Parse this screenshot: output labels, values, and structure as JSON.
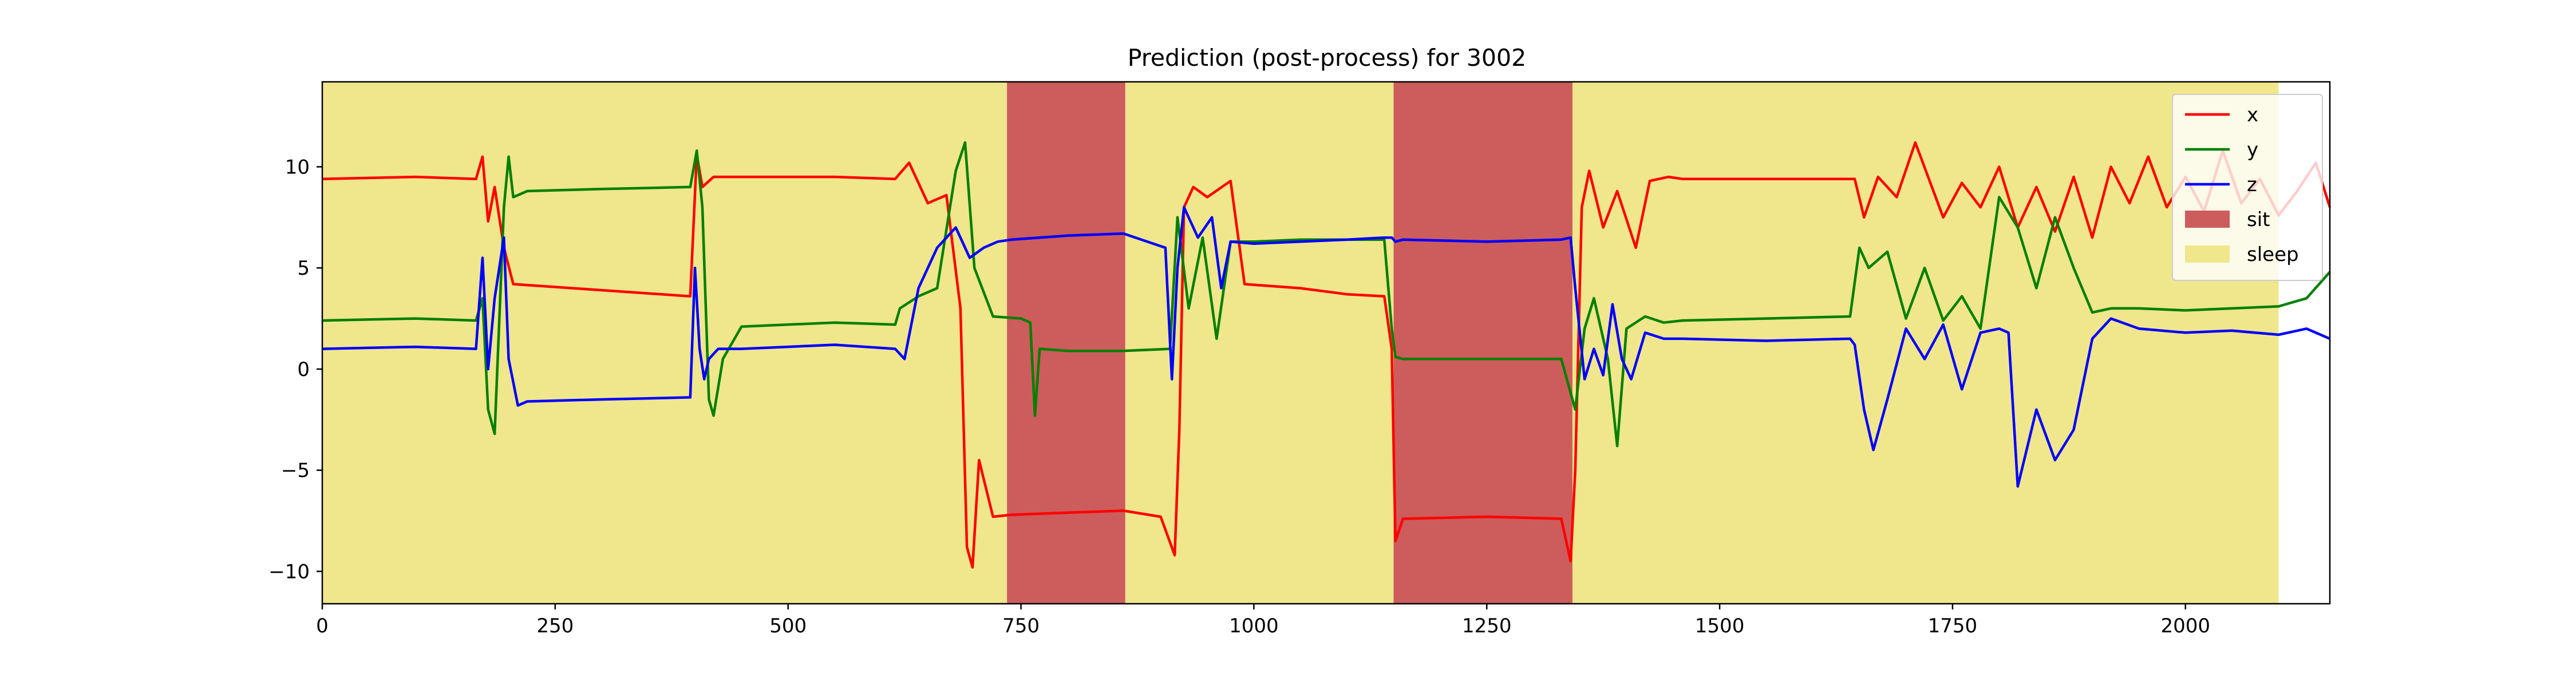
{
  "chart_data": {
    "type": "line",
    "title": "Prediction (post-process) for 3002",
    "xlabel": "",
    "ylabel": "",
    "xlim": [
      0,
      2155
    ],
    "ylim": [
      -11.6,
      14.2
    ],
    "xticks": [
      0,
      250,
      500,
      750,
      1000,
      1250,
      1500,
      1750,
      2000
    ],
    "yticks": [
      -10,
      -5,
      0,
      5,
      10
    ],
    "grid": false,
    "legend_position": "top-right",
    "regions": [
      {
        "label": "sleep",
        "x_start": 0,
        "x_end": 735
      },
      {
        "label": "sit",
        "x_start": 735,
        "x_end": 862
      },
      {
        "label": "sleep",
        "x_start": 862,
        "x_end": 1150
      },
      {
        "label": "sit",
        "x_start": 1150,
        "x_end": 1342
      },
      {
        "label": "sleep",
        "x_start": 1342,
        "x_end": 2100
      }
    ],
    "region_colors": {
      "sit": "#cd5c5c",
      "sleep": "#f0e68c"
    },
    "series": [
      {
        "name": "x",
        "color": "#ff0000",
        "x": [
          0,
          100,
          165,
          172,
          178,
          185,
          195,
          205,
          300,
          395,
          402,
          408,
          420,
          450,
          550,
          615,
          630,
          650,
          670,
          685,
          692,
          698,
          705,
          720,
          740,
          800,
          860,
          900,
          915,
          920,
          925,
          935,
          950,
          975,
          990,
          1050,
          1100,
          1140,
          1148,
          1152,
          1160,
          1250,
          1330,
          1340,
          1345,
          1352,
          1360,
          1375,
          1390,
          1410,
          1425,
          1445,
          1460,
          1550,
          1645,
          1655,
          1670,
          1690,
          1710,
          1740,
          1760,
          1780,
          1800,
          1820,
          1840,
          1860,
          1880,
          1900,
          1920,
          1940,
          1960,
          1980,
          2000,
          2020,
          2040,
          2060,
          2080,
          2100,
          2120,
          2140,
          2155
        ],
        "y": [
          9.4,
          9.5,
          9.4,
          10.5,
          7.3,
          9.0,
          6.0,
          4.2,
          3.9,
          3.6,
          10.6,
          9.0,
          9.5,
          9.5,
          9.5,
          9.4,
          10.2,
          8.2,
          8.6,
          3.0,
          -8.8,
          -9.8,
          -4.5,
          -7.3,
          -7.2,
          -7.1,
          -7.0,
          -7.3,
          -9.2,
          -3.0,
          8.0,
          9.0,
          8.5,
          9.3,
          4.2,
          4.0,
          3.7,
          3.6,
          1.0,
          -8.5,
          -7.4,
          -7.3,
          -7.4,
          -9.5,
          -5.0,
          8.0,
          9.8,
          7.0,
          8.8,
          6.0,
          9.3,
          9.5,
          9.4,
          9.4,
          9.4,
          7.5,
          9.5,
          8.5,
          11.2,
          7.5,
          9.2,
          8.0,
          10.0,
          7.0,
          9.0,
          6.8,
          9.5,
          6.5,
          10.0,
          8.2,
          10.5,
          8.0,
          9.5,
          7.8,
          10.8,
          8.2,
          9.4,
          7.6,
          8.8,
          10.2,
          8.0
        ]
      },
      {
        "name": "y",
        "color": "#008000",
        "x": [
          0,
          100,
          165,
          172,
          178,
          185,
          195,
          200,
          205,
          220,
          300,
          395,
          402,
          408,
          415,
          420,
          430,
          450,
          550,
          615,
          620,
          640,
          660,
          680,
          690,
          700,
          720,
          750,
          760,
          765,
          770,
          800,
          860,
          910,
          918,
          930,
          945,
          960,
          975,
          1000,
          1050,
          1100,
          1140,
          1148,
          1152,
          1160,
          1250,
          1330,
          1345,
          1355,
          1365,
          1380,
          1390,
          1400,
          1420,
          1440,
          1460,
          1550,
          1640,
          1650,
          1660,
          1680,
          1700,
          1720,
          1740,
          1760,
          1780,
          1800,
          1820,
          1840,
          1860,
          1880,
          1900,
          1920,
          1950,
          2000,
          2050,
          2100,
          2130,
          2155
        ],
        "y": [
          2.4,
          2.5,
          2.4,
          3.5,
          -2.0,
          -3.2,
          8.0,
          10.5,
          8.5,
          8.8,
          8.9,
          9.0,
          10.8,
          8.0,
          -1.5,
          -2.3,
          0.5,
          2.1,
          2.3,
          2.2,
          3.0,
          3.6,
          4.0,
          9.8,
          11.2,
          5.0,
          2.6,
          2.5,
          2.3,
          -2.3,
          1.0,
          0.9,
          0.9,
          1.0,
          7.5,
          3.0,
          6.5,
          1.5,
          6.3,
          6.3,
          6.4,
          6.4,
          6.4,
          2.0,
          0.6,
          0.5,
          0.5,
          0.5,
          -2.0,
          2.0,
          3.5,
          0.5,
          -3.8,
          2.0,
          2.6,
          2.3,
          2.4,
          2.5,
          2.6,
          6.0,
          5.0,
          5.8,
          2.5,
          5.0,
          2.4,
          3.6,
          2.0,
          8.5,
          7.0,
          4.0,
          7.5,
          5.0,
          2.8,
          3.0,
          3.0,
          2.9,
          3.0,
          3.1,
          3.5,
          4.8
        ]
      },
      {
        "name": "z",
        "color": "#0000ff",
        "x": [
          0,
          100,
          165,
          172,
          178,
          185,
          195,
          200,
          210,
          220,
          300,
          395,
          400,
          405,
          410,
          415,
          425,
          450,
          550,
          615,
          625,
          640,
          660,
          680,
          695,
          710,
          725,
          740,
          800,
          860,
          905,
          912,
          918,
          925,
          940,
          955,
          965,
          975,
          1000,
          1050,
          1100,
          1140,
          1148,
          1152,
          1160,
          1250,
          1330,
          1340,
          1345,
          1355,
          1365,
          1375,
          1385,
          1395,
          1405,
          1420,
          1440,
          1460,
          1550,
          1640,
          1645,
          1655,
          1665,
          1680,
          1700,
          1720,
          1740,
          1760,
          1780,
          1800,
          1810,
          1820,
          1840,
          1860,
          1880,
          1900,
          1920,
          1950,
          2000,
          2050,
          2100,
          2130,
          2155
        ],
        "y": [
          1.0,
          1.1,
          1.0,
          5.5,
          0.0,
          3.5,
          6.5,
          0.5,
          -1.8,
          -1.6,
          -1.5,
          -1.4,
          5.0,
          1.0,
          -0.5,
          0.5,
          1.0,
          1.0,
          1.2,
          1.0,
          0.5,
          4.0,
          6.0,
          7.0,
          5.5,
          6.0,
          6.3,
          6.4,
          6.6,
          6.7,
          6.0,
          -0.5,
          5.0,
          8.0,
          6.5,
          7.5,
          4.0,
          6.3,
          6.2,
          6.3,
          6.4,
          6.5,
          6.5,
          6.3,
          6.4,
          6.3,
          6.4,
          6.5,
          4.0,
          -0.5,
          1.0,
          -0.3,
          3.2,
          0.5,
          -0.5,
          1.8,
          1.5,
          1.5,
          1.4,
          1.5,
          1.2,
          -2.0,
          -4.0,
          -1.5,
          2.0,
          0.5,
          2.2,
          -1.0,
          1.8,
          2.0,
          1.8,
          -5.8,
          -2.0,
          -4.5,
          -3.0,
          1.5,
          2.5,
          2.0,
          1.8,
          1.9,
          1.7,
          2.0,
          1.5
        ]
      }
    ],
    "legend": [
      {
        "label": "x",
        "kind": "line",
        "color": "#ff0000"
      },
      {
        "label": "y",
        "kind": "line",
        "color": "#008000"
      },
      {
        "label": "z",
        "kind": "line",
        "color": "#0000ff"
      },
      {
        "label": "sit",
        "kind": "patch",
        "color": "#cd5c5c"
      },
      {
        "label": "sleep",
        "kind": "patch",
        "color": "#f0e68c"
      }
    ]
  }
}
